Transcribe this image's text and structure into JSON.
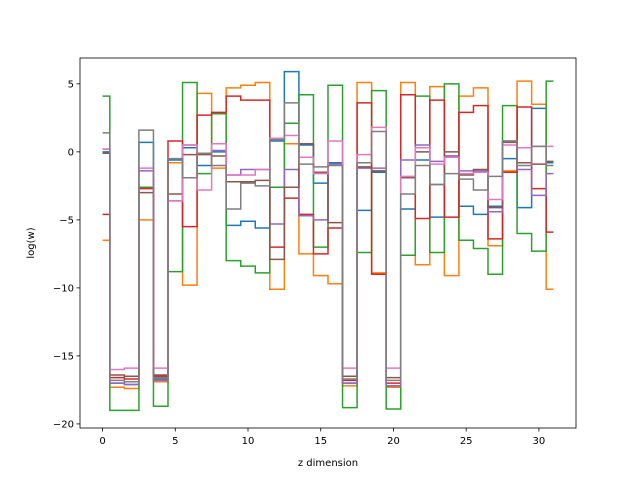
{
  "chart_data": {
    "type": "line",
    "drawstyle": "steps-mid",
    "title": "",
    "xlabel": "z dimension",
    "ylabel": "log(w)",
    "xlim": [
      -1.55,
      32.55
    ],
    "ylim": [
      -20.3,
      6.9
    ],
    "xticks": [
      0,
      5,
      10,
      15,
      20,
      25,
      30
    ],
    "yticks": [
      -20,
      -15,
      -10,
      -5,
      0,
      5
    ],
    "grid": false,
    "legend": "none",
    "x": [
      0,
      1,
      2,
      3,
      4,
      5,
      6,
      7,
      8,
      9,
      10,
      11,
      12,
      13,
      14,
      15,
      16,
      17,
      18,
      19,
      20,
      21,
      22,
      23,
      24,
      25,
      26,
      27,
      28,
      29,
      30,
      31
    ],
    "series": [
      {
        "color": "#1f77b4",
        "values": [
          0.0,
          -17.0,
          -17.1,
          0.7,
          -16.7,
          -0.6,
          0.3,
          -1.0,
          0.0,
          -5.4,
          -5.1,
          -5.6,
          0.8,
          5.9,
          0.5,
          -2.3,
          -0.8,
          -17.0,
          -4.3,
          -1.5,
          -17.2,
          -4.2,
          -0.6,
          -4.8,
          -0.3,
          -4.0,
          -4.6,
          -4.0,
          -0.5,
          -4.1,
          3.2,
          -0.8
        ]
      },
      {
        "color": "#ff7f0e",
        "values": [
          -6.5,
          -17.3,
          -17.4,
          -5.0,
          -16.9,
          -0.8,
          -9.8,
          4.3,
          -1.2,
          4.7,
          4.9,
          5.1,
          -10.1,
          0.6,
          -7.5,
          -9.1,
          -9.7,
          -17.2,
          5.1,
          -8.9,
          -17.3,
          5.1,
          -8.3,
          4.8,
          -9.1,
          4.1,
          4.7,
          -6.9,
          -1.4,
          5.2,
          3.5,
          -10.1
        ]
      },
      {
        "color": "#2ca02c",
        "values": [
          4.1,
          -19.0,
          -19.0,
          -2.6,
          -18.7,
          -8.8,
          5.1,
          -1.6,
          2.8,
          -8.0,
          -8.4,
          -8.9,
          -2.6,
          2.1,
          4.2,
          -7.0,
          4.9,
          -18.8,
          -7.4,
          4.5,
          -18.9,
          -7.6,
          4.1,
          -7.4,
          5.0,
          -6.5,
          -7.1,
          -9.0,
          3.4,
          -6.0,
          -7.3,
          5.2
        ]
      },
      {
        "color": "#d62728",
        "values": [
          -4.6,
          -16.6,
          -16.7,
          -2.7,
          -16.5,
          0.8,
          -5.5,
          2.7,
          2.9,
          4.1,
          3.8,
          3.8,
          -7.0,
          -3.4,
          -4.6,
          -7.5,
          -5.6,
          -16.8,
          3.6,
          -9.0,
          -17.0,
          4.2,
          -4.9,
          3.8,
          -4.8,
          2.9,
          3.4,
          -6.4,
          -1.5,
          3.3,
          -2.7,
          -5.9
        ]
      },
      {
        "color": "#9467bd",
        "values": [
          0.2,
          -17.0,
          -17.1,
          -1.4,
          -16.8,
          -3.6,
          0.5,
          -0.1,
          0.1,
          -1.7,
          -1.3,
          -1.3,
          -5.3,
          -1.3,
          -4.7,
          -5.0,
          -0.9,
          -17.0,
          -1.2,
          -1.2,
          -17.2,
          -0.6,
          0.5,
          -0.7,
          -0.3,
          -1.4,
          -1.4,
          -4.4,
          0.8,
          -1.3,
          -3.2,
          -1.6
        ]
      },
      {
        "color": "#8c564b",
        "values": [
          -0.1,
          -16.4,
          -16.5,
          -3.0,
          -16.4,
          -3.1,
          -0.2,
          -0.2,
          -0.3,
          -2.2,
          -2.2,
          -2.1,
          -7.9,
          -2.6,
          0.6,
          -1.5,
          -5.2,
          -16.5,
          -1.1,
          -1.4,
          -16.6,
          -1.9,
          0.0,
          -2.4,
          0.0,
          -1.7,
          -1.3,
          -4.1,
          0.7,
          -0.8,
          -0.9,
          -0.7
        ]
      },
      {
        "color": "#e377c2",
        "values": [
          0.2,
          -16.0,
          -15.9,
          -1.2,
          -15.9,
          -3.6,
          0.5,
          -2.8,
          0.6,
          -1.7,
          -1.7,
          -1.3,
          1.0,
          1.2,
          -0.4,
          -1.6,
          0.8,
          -15.9,
          -0.2,
          1.8,
          -15.9,
          -1.8,
          0.3,
          -0.9,
          -0.4,
          -1.6,
          -1.5,
          -3.5,
          0.5,
          0.3,
          0.4,
          0.4
        ]
      },
      {
        "color": "#7f7f7f",
        "values": [
          1.4,
          -16.8,
          -16.9,
          1.6,
          -16.6,
          -0.5,
          -1.9,
          -0.1,
          -1.0,
          -4.2,
          -2.3,
          -2.5,
          0.9,
          3.6,
          -0.9,
          -1.1,
          -1.0,
          -16.7,
          -0.8,
          1.5,
          -16.8,
          -3.1,
          -1.0,
          -2.4,
          -1.6,
          -2.0,
          -2.8,
          -1.8,
          0.8,
          -1.0,
          0.4,
          -1.0
        ]
      }
    ]
  }
}
